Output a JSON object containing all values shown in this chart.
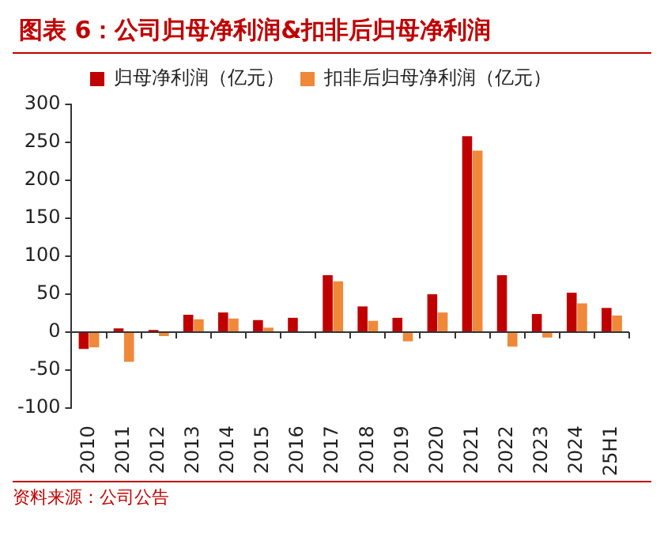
{
  "chart_data": {
    "type": "bar",
    "title": "图表 6：公司归母净利润&扣非后归母净利润",
    "categories": [
      "2010",
      "2011",
      "2012",
      "2013",
      "2014",
      "2015",
      "2016",
      "2017",
      "2018",
      "2019",
      "2020",
      "2021",
      "2022",
      "2023",
      "2024",
      "25H1"
    ],
    "series": [
      {
        "name": "归母净利润（亿元）",
        "color": "#c00000",
        "values": [
          -22,
          5,
          3,
          23,
          26,
          16,
          19,
          75,
          34,
          19,
          50,
          258,
          75,
          24,
          52,
          32
        ]
      },
      {
        "name": "扣非后归母净利润（亿元）",
        "color": "#f0883a",
        "values": [
          -20,
          -39,
          -5,
          17,
          18,
          6,
          0,
          67,
          15,
          -12,
          26,
          239,
          -19,
          -7,
          38,
          22
        ]
      }
    ],
    "ylim": [
      -100,
      300
    ],
    "yticks": [
      -100,
      -50,
      0,
      50,
      100,
      150,
      200,
      250,
      300
    ],
    "ref_lines": [
      {
        "axis": "y",
        "value": 0,
        "color": "#333333"
      }
    ],
    "grid": false,
    "legend": "top",
    "annotations": [
      "资料来源：公司公告"
    ]
  }
}
